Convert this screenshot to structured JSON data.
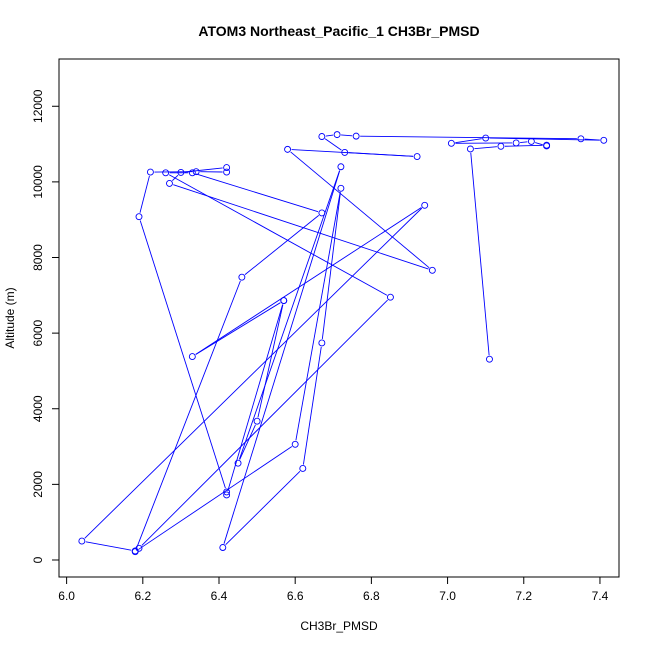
{
  "chart_data": {
    "type": "line",
    "title": "ATOM3 Northeast_Pacific_1 CH3Br_PMSD",
    "xlabel": "CH3Br_PMSD",
    "ylabel": "Altitude (m)",
    "xlim": [
      5.98,
      7.45
    ],
    "ylim": [
      -450,
      13250
    ],
    "x_ticks": [
      6.0,
      6.2,
      6.4,
      6.6,
      6.8,
      7.0,
      7.2,
      7.4
    ],
    "x_tick_labels": [
      "6.0",
      "6.2",
      "6.4",
      "6.6",
      "6.8",
      "7.0",
      "7.2",
      "7.4"
    ],
    "y_ticks": [
      0,
      2000,
      4000,
      6000,
      8000,
      10000,
      12000
    ],
    "y_tick_labels": [
      "0",
      "2000",
      "4000",
      "6000",
      "8000",
      "10000",
      "12000"
    ],
    "grid": false,
    "markers": "open-circle",
    "series": [
      {
        "color": "#0000ff",
        "points": [
          [
            7.11,
            5310
          ],
          [
            7.06,
            10870
          ],
          [
            7.14,
            10940
          ],
          [
            7.26,
            10970
          ],
          [
            7.26,
            10950
          ],
          [
            7.22,
            11070
          ],
          [
            7.18,
            11030
          ],
          [
            7.01,
            11020
          ],
          [
            7.1,
            11160
          ],
          [
            7.41,
            11100
          ],
          [
            7.35,
            11140
          ],
          [
            6.76,
            11210
          ],
          [
            6.71,
            11250
          ],
          [
            6.67,
            11200
          ],
          [
            6.73,
            10780
          ],
          [
            6.92,
            10670
          ],
          [
            6.58,
            10860
          ],
          [
            6.96,
            7660
          ],
          [
            6.27,
            9960
          ],
          [
            6.3,
            10250
          ],
          [
            6.42,
            10380
          ],
          [
            6.42,
            10260
          ],
          [
            6.34,
            10270
          ],
          [
            6.22,
            10260
          ],
          [
            6.19,
            9080
          ],
          [
            6.42,
            1800
          ],
          [
            6.42,
            1720
          ],
          [
            6.57,
            6860
          ],
          [
            6.33,
            5380
          ],
          [
            6.94,
            9380
          ],
          [
            6.04,
            500
          ],
          [
            6.18,
            240
          ],
          [
            6.19,
            310
          ],
          [
            6.85,
            6950
          ],
          [
            6.26,
            10240
          ],
          [
            6.33,
            10240
          ],
          [
            6.67,
            9180
          ],
          [
            6.46,
            7480
          ],
          [
            6.18,
            220
          ],
          [
            6.6,
            3060
          ],
          [
            6.72,
            9830
          ],
          [
            6.67,
            5740
          ],
          [
            6.62,
            2420
          ],
          [
            6.41,
            330
          ],
          [
            6.72,
            10400
          ],
          [
            6.45,
            2560
          ],
          [
            6.5,
            3670
          ],
          [
            6.57,
            6860
          ]
        ]
      }
    ]
  }
}
